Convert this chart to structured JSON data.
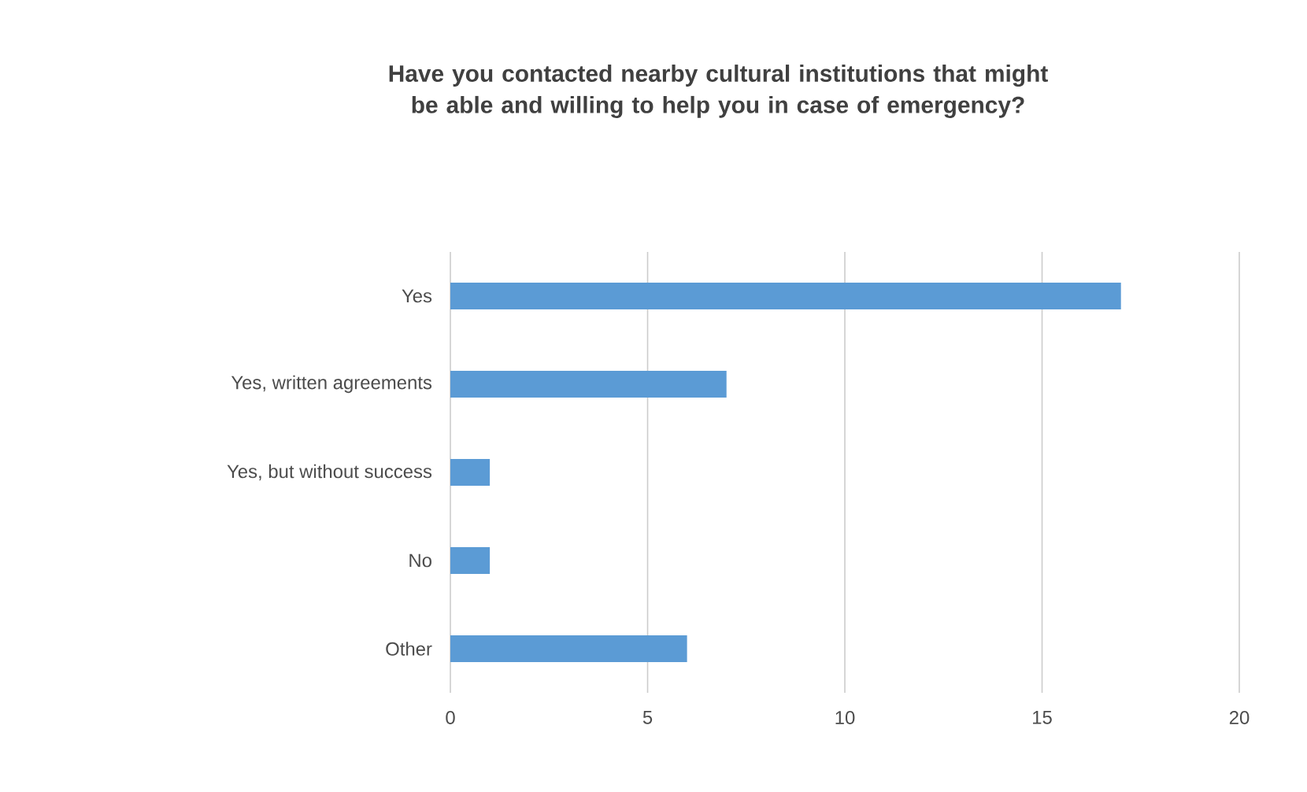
{
  "chart_data": {
    "type": "bar",
    "orientation": "horizontal",
    "title": "Have you contacted nearby cultural institutions that might be able and willing to help you in case of emergency?",
    "categories": [
      "Yes",
      "Yes, written agreements",
      "Yes, but without success",
      "No",
      "Other"
    ],
    "values": [
      17,
      7,
      1,
      1,
      6
    ],
    "color": "#5b9bd5",
    "xlim": [
      0,
      20
    ],
    "xticks": [
      0,
      5,
      10,
      15,
      20
    ],
    "grid": "x"
  }
}
